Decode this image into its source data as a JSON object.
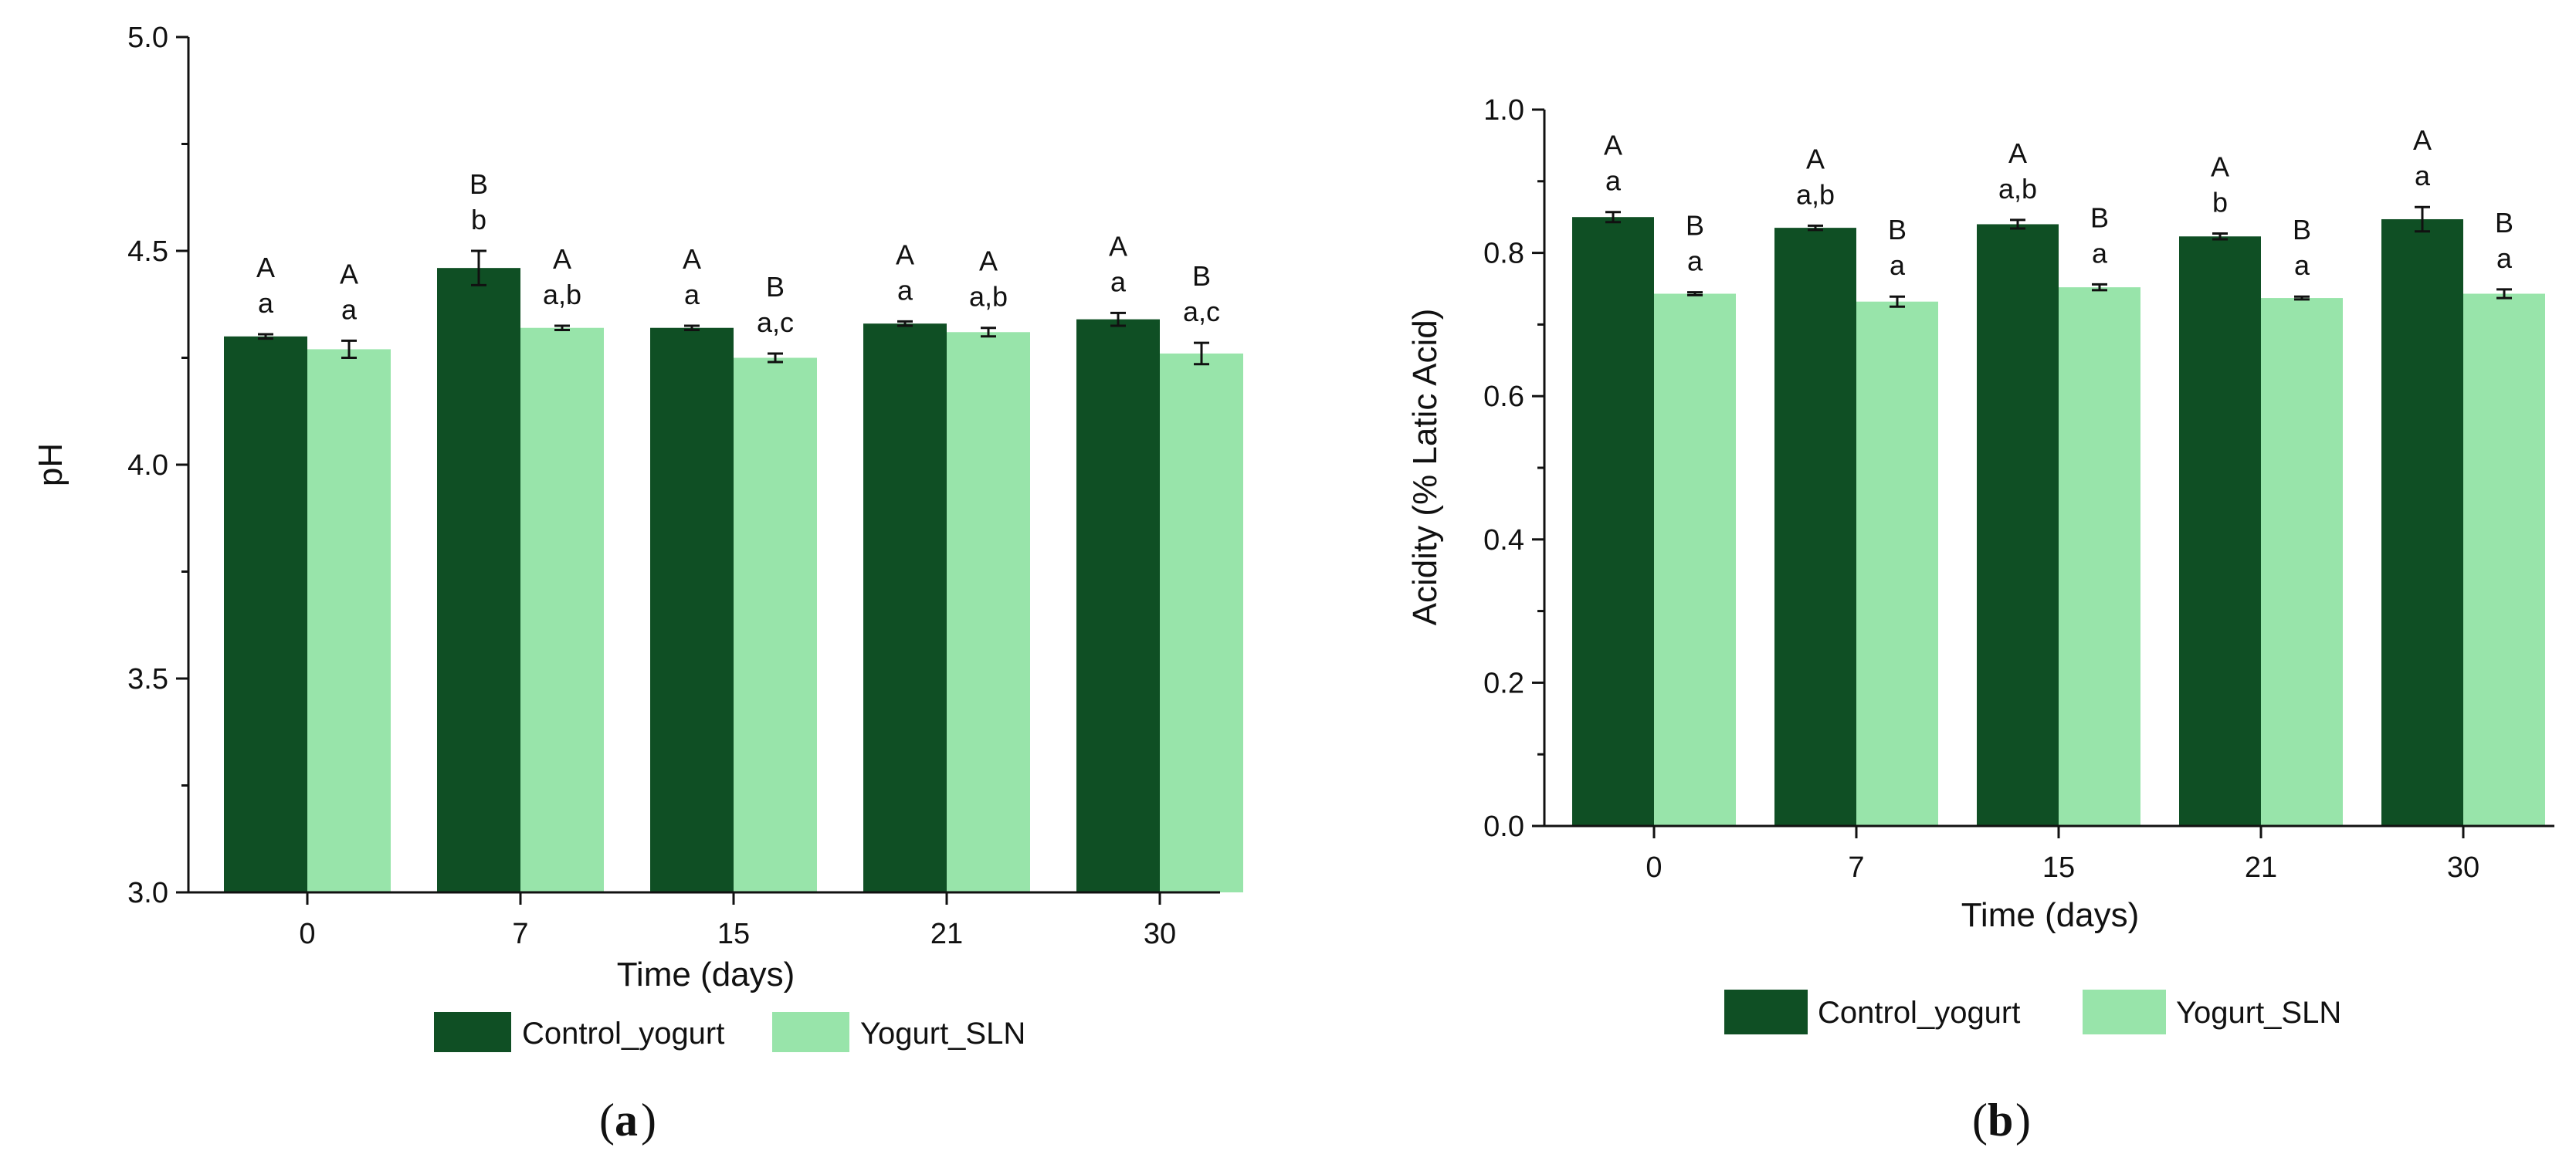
{
  "colors": {
    "control": "#0f4f24",
    "sln": "#98e4aa",
    "axis": "#111111"
  },
  "chart_data": [
    {
      "id": "a",
      "type": "bar",
      "panel_label": "a",
      "title": "",
      "xlabel": "Time (days)",
      "ylabel": "pH",
      "categories": [
        "0",
        "7",
        "15",
        "21",
        "30"
      ],
      "ylim": [
        3.0,
        5.0
      ],
      "yticks": [
        3.0,
        3.5,
        4.0,
        4.5,
        5.0
      ],
      "ytick_labels": [
        "3.0",
        "3.5",
        "4.0",
        "4.5",
        "5.0"
      ],
      "legend": "bottom",
      "series": [
        {
          "name": "Control_yogurt",
          "values": [
            4.3,
            4.46,
            4.32,
            4.33,
            4.34
          ],
          "errors": [
            0.005,
            0.04,
            0.005,
            0.005,
            0.015
          ],
          "letters_upper": [
            "A",
            "B",
            "A",
            "A",
            "A"
          ],
          "letters_lower": [
            "a",
            "b",
            "a",
            "a",
            "a"
          ]
        },
        {
          "name": "Yogurt_SLN",
          "values": [
            4.27,
            4.32,
            4.25,
            4.31,
            4.26
          ],
          "errors": [
            0.02,
            0.005,
            0.01,
            0.01,
            0.025
          ],
          "letters_upper": [
            "A",
            "A",
            "B",
            "A",
            "B"
          ],
          "letters_lower": [
            "a",
            "a,b",
            "a,c",
            "a,b",
            "a,c"
          ]
        }
      ]
    },
    {
      "id": "b",
      "type": "bar",
      "panel_label": "b",
      "title": "",
      "xlabel": "Time (days)",
      "ylabel": "Acidity (% Latic Acid)",
      "categories": [
        "0",
        "7",
        "15",
        "21",
        "30"
      ],
      "ylim": [
        0.0,
        1.0
      ],
      "yticks": [
        0.0,
        0.2,
        0.4,
        0.6,
        0.8,
        1.0
      ],
      "ytick_labels": [
        "0.0",
        "0.2",
        "0.4",
        "0.6",
        "0.8",
        "1.0"
      ],
      "legend": "bottom",
      "series": [
        {
          "name": "Control_yogurt",
          "values": [
            0.85,
            0.835,
            0.84,
            0.823,
            0.847
          ],
          "errors": [
            0.007,
            0.003,
            0.006,
            0.004,
            0.017
          ],
          "letters_upper": [
            "A",
            "A",
            "A",
            "A",
            "A"
          ],
          "letters_lower": [
            "a",
            "a,b",
            "a,b",
            "b",
            "a"
          ]
        },
        {
          "name": "Yogurt_SLN",
          "values": [
            0.743,
            0.732,
            0.752,
            0.737,
            0.743
          ],
          "errors": [
            0.002,
            0.007,
            0.004,
            0.002,
            0.006
          ],
          "letters_upper": [
            "B",
            "B",
            "B",
            "B",
            "B"
          ],
          "letters_lower": [
            "a",
            "a",
            "a",
            "a",
            "a"
          ]
        }
      ]
    }
  ]
}
